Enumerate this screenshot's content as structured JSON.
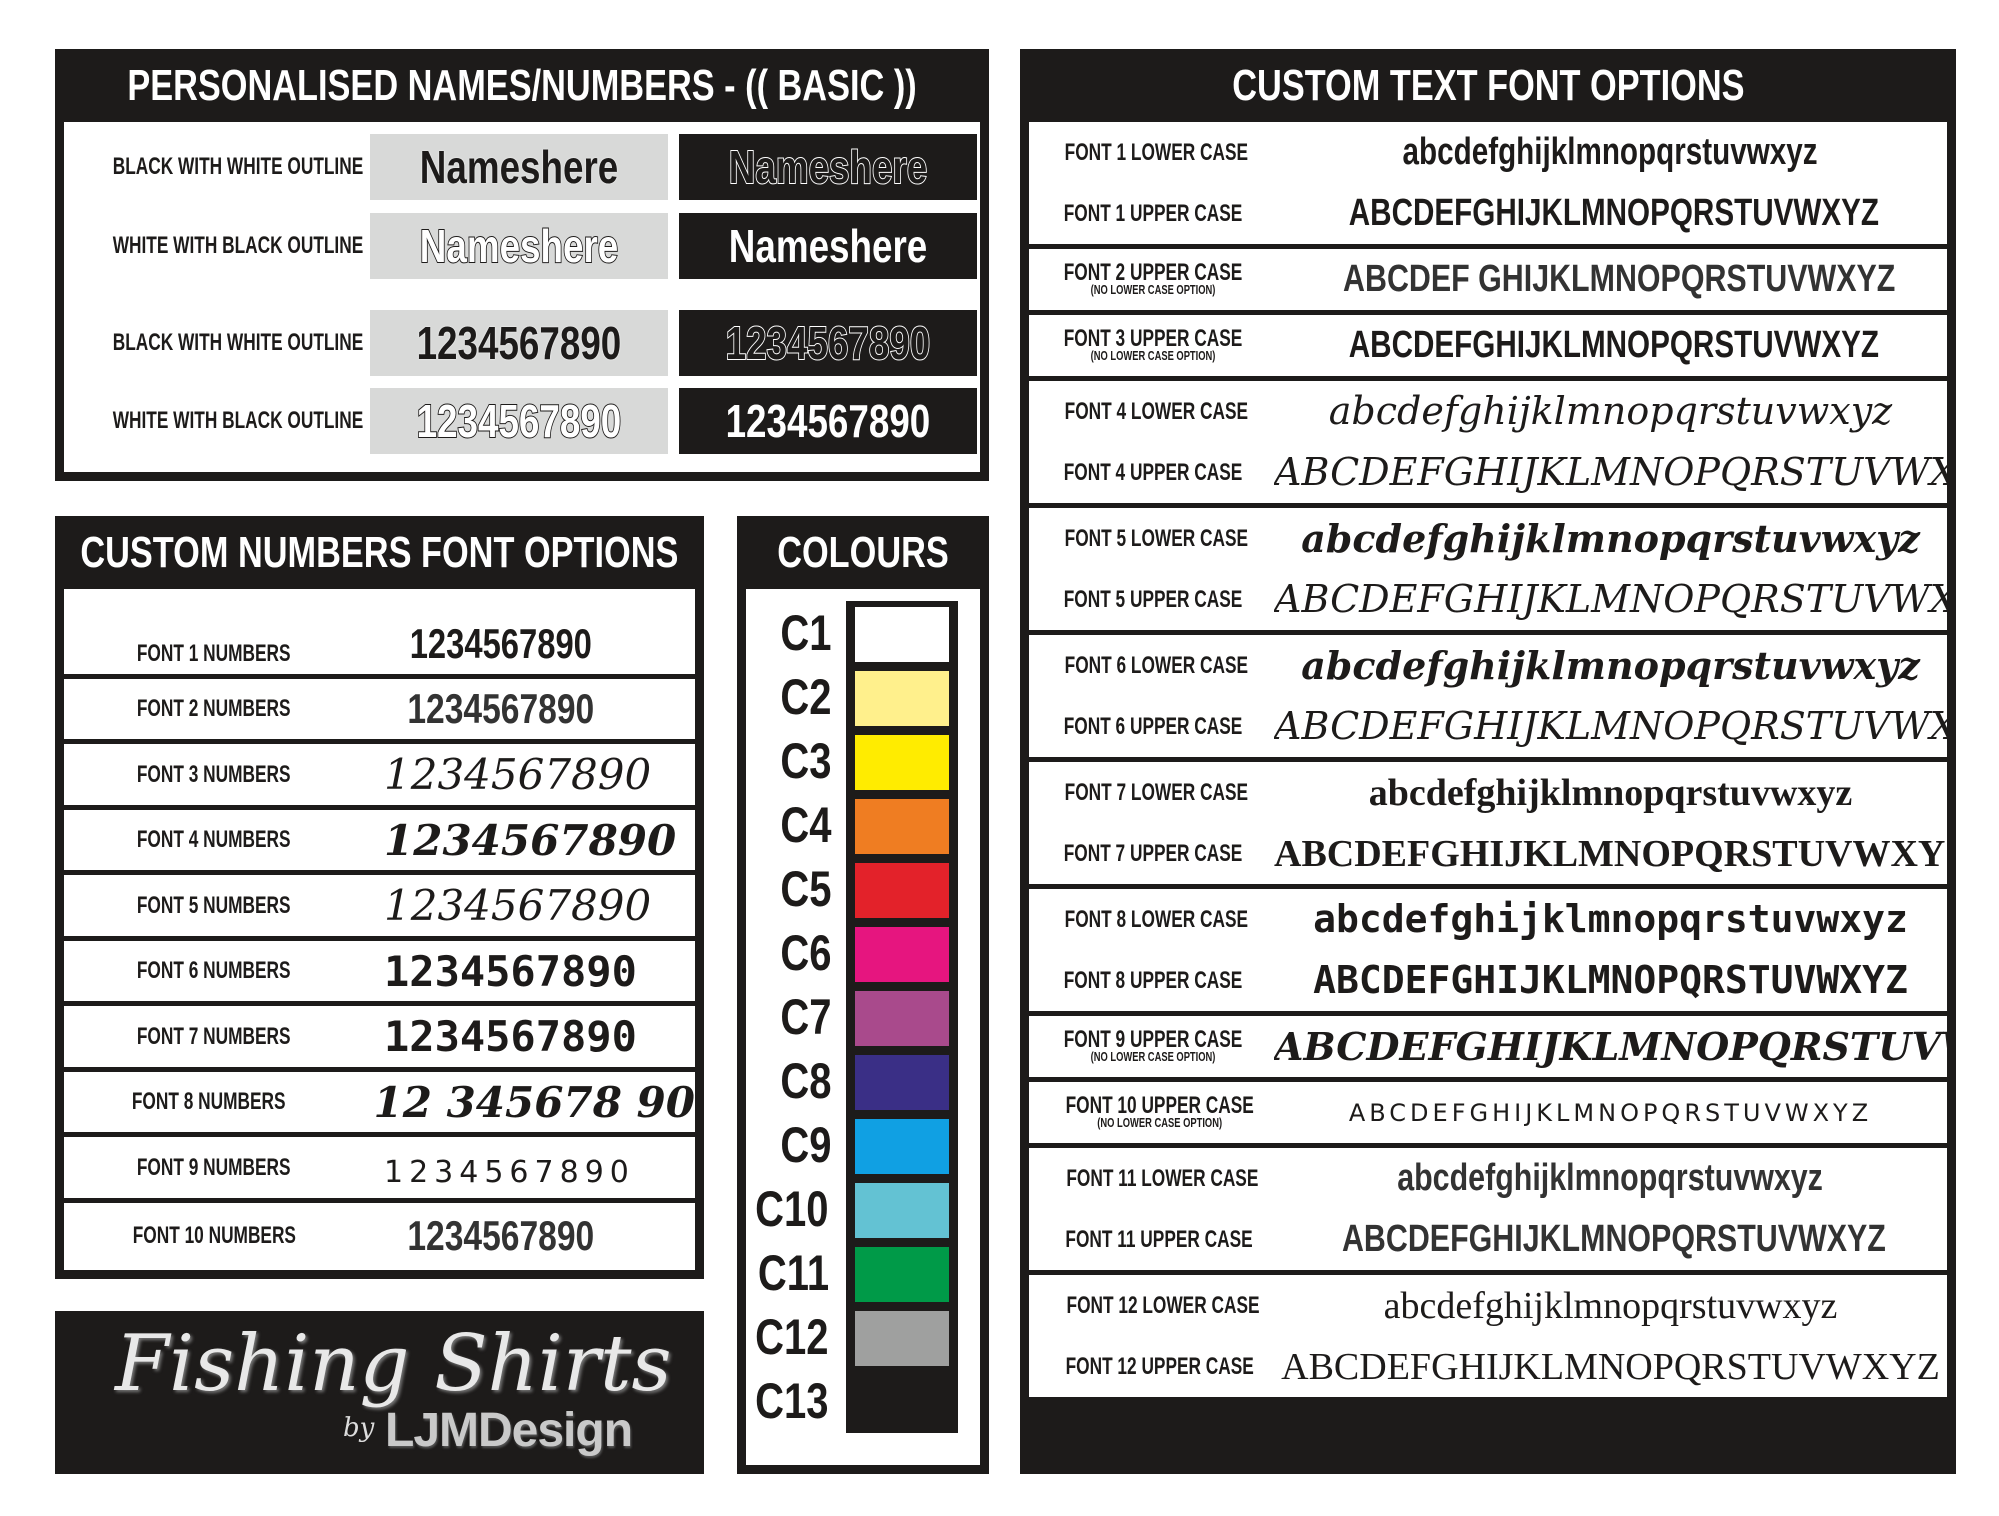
{
  "basic": {
    "title": "PERSONALISED NAMES/NUMBERS - (( BASIC ))",
    "rows": [
      {
        "label": "BLACK WITH WHITE OUTLINE",
        "sample": "Nameshere"
      },
      {
        "label": "WHITE WITH BLACK OUTLINE",
        "sample": "Nameshere"
      },
      {
        "label": "BLACK WITH WHITE OUTLINE",
        "sample": "1234567890"
      },
      {
        "label": "WHITE WITH BLACK OUTLINE",
        "sample": "1234567890"
      }
    ]
  },
  "numbers": {
    "title": "CUSTOM NUMBERS FONT OPTIONS",
    "rows": [
      {
        "label": "FONT 1 NUMBERS",
        "sample": "1234567890"
      },
      {
        "label": "FONT 2 NUMBERS",
        "sample": "1234567890"
      },
      {
        "label": "FONT 3 NUMBERS",
        "sample": "1234567890"
      },
      {
        "label": "FONT 4 NUMBERS",
        "sample": "1234567890"
      },
      {
        "label": "FONT 5 NUMBERS",
        "sample": "1234567890"
      },
      {
        "label": "FONT 6 NUMBERS",
        "sample": "1234567890"
      },
      {
        "label": "FONT 7 NUMBERS",
        "sample": "1234567890"
      },
      {
        "label": "FONT 8 NUMBERS",
        "sample": "12 345678 90"
      },
      {
        "label": "FONT 9 NUMBERS",
        "sample": "1234567890"
      },
      {
        "label": "FONT 10 NUMBERS",
        "sample": "1234567890"
      }
    ]
  },
  "colours": {
    "title": "COLOURS",
    "items": [
      {
        "label": "C1",
        "color": "#ffffff"
      },
      {
        "label": "C2",
        "color": "#fff08c"
      },
      {
        "label": "C3",
        "color": "#ffec00"
      },
      {
        "label": "C4",
        "color": "#ef7d22"
      },
      {
        "label": "C5",
        "color": "#e3222a"
      },
      {
        "label": "C6",
        "color": "#e6157f"
      },
      {
        "label": "C7",
        "color": "#a94a8c"
      },
      {
        "label": "C8",
        "color": "#3a2f86"
      },
      {
        "label": "C9",
        "color": "#10a0e3"
      },
      {
        "label": "C10",
        "color": "#63c2d3"
      },
      {
        "label": "C11",
        "color": "#009a48"
      },
      {
        "label": "C12",
        "color": "#9fa09f"
      },
      {
        "label": "C13",
        "color": "#1d1b1a"
      }
    ]
  },
  "logo": {
    "script": "Fishing Shirts",
    "by": "by",
    "brand": "LJMDesign"
  },
  "text_fonts": {
    "title": "CUSTOM TEXT FONT OPTIONS",
    "groups": [
      {
        "rows": [
          {
            "label": "FONT 1 LOWER CASE",
            "sample": "abcdefghijklmnopqrstuvwxyz"
          },
          {
            "label": "FONT 1 UPPER CASE",
            "sample": "ABCDEFGHIJKLMNOPQRSTUVWXYZ"
          }
        ]
      },
      {
        "rows": [
          {
            "label": "FONT 2 UPPER CASE",
            "note": "(NO LOWER CASE OPTION)",
            "sample": "ABCDEF GHIJKLMNOPQRSTUVWXYZ"
          }
        ]
      },
      {
        "rows": [
          {
            "label": "FONT 3 UPPER CASE",
            "note": "(NO LOWER CASE OPTION)",
            "sample": "ABCDEFGHIJKLMNOPQRSTUVWXYZ"
          }
        ]
      },
      {
        "rows": [
          {
            "label": "FONT 4 LOWER CASE",
            "sample": "abcdefghijklmnopqrstuvwxyz"
          },
          {
            "label": "FONT 4 UPPER CASE",
            "sample": "ABCDEFGHIJKLMNOPQRSTUVWXYZ"
          }
        ]
      },
      {
        "rows": [
          {
            "label": "FONT 5 LOWER CASE",
            "sample": "abcdefghijklmnopqrstuvwxyz"
          },
          {
            "label": "FONT 5 UPPER CASE",
            "sample": "ABCDEFGHIJKLMNOPQRSTUVWXYZ"
          }
        ]
      },
      {
        "rows": [
          {
            "label": "FONT 6 LOWER CASE",
            "sample": "abcdefghijklmnopqrstuvwxyz"
          },
          {
            "label": "FONT 6 UPPER CASE",
            "sample": "ABCDEFGHIJKLMNOPQRSTUVWXYZ"
          }
        ]
      },
      {
        "rows": [
          {
            "label": "FONT 7 LOWER CASE",
            "sample": "abcdefghijklmnopqrstuvwxyz"
          },
          {
            "label": "FONT 7 UPPER CASE",
            "sample": "ABCDEFGHIJKLMNOPQRSTUVWXYZ"
          }
        ]
      },
      {
        "rows": [
          {
            "label": "FONT 8 LOWER CASE",
            "sample": "abcdefghijklmnopqrstuvwxyz"
          },
          {
            "label": "FONT 8 UPPER CASE",
            "sample": "ABCDEFGHIJKLMNOPQRSTUVWXYZ"
          }
        ]
      },
      {
        "rows": [
          {
            "label": "FONT 9 UPPER CASE",
            "note": "(NO LOWER CASE OPTION)",
            "sample": "ABCDEFGHIJKLMNOPQRSTUVWXYZ"
          }
        ]
      },
      {
        "rows": [
          {
            "label": "FONT 10 UPPER CASE",
            "note": "(NO LOWER CASE OPTION)",
            "sample": "ABCDEFGHIJKLMNOPQRSTUVWXYZ"
          }
        ]
      },
      {
        "rows": [
          {
            "label": "FONT 11 LOWER CASE",
            "sample": "abcdefghijklmnopqrstuvwxyz"
          },
          {
            "label": "FONT 11 UPPER CASE",
            "sample": "ABCDEFGHIJKLMNOPQRSTUVWXYZ"
          }
        ]
      },
      {
        "rows": [
          {
            "label": "FONT 12 LOWER CASE",
            "sample": "abcdefghijklmnopqrstuvwxyz"
          },
          {
            "label": "FONT 12 UPPER CASE",
            "sample": "ABCDEFGHIJKLMNOPQRSTUVWXYZ"
          }
        ]
      }
    ]
  }
}
